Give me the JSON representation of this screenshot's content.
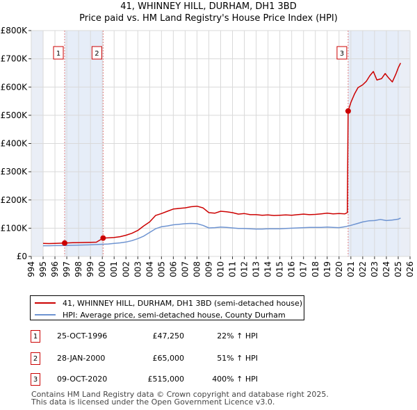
{
  "title_line1": "41, WHINNEY HILL, DURHAM, DH1 3BD",
  "title_line2": "Price paid vs. HM Land Registry's House Price Index (HPI)",
  "chart_data": {
    "type": "line",
    "title": "41, WHINNEY HILL, DURHAM, DH1 3BD — Price paid vs. HM Land Registry's House Price Index (HPI)",
    "xlim": [
      1994,
      2026
    ],
    "ylim": [
      0,
      800000
    ],
    "x_ticks": [
      1994,
      1995,
      1996,
      1997,
      1998,
      1999,
      2000,
      2001,
      2002,
      2003,
      2004,
      2005,
      2006,
      2007,
      2008,
      2009,
      2010,
      2011,
      2012,
      2013,
      2014,
      2015,
      2016,
      2017,
      2018,
      2019,
      2020,
      2021,
      2022,
      2023,
      2024,
      2025,
      2026
    ],
    "y_ticks": [
      {
        "value": 0,
        "label": "£0"
      },
      {
        "value": 100000,
        "label": "£100K"
      },
      {
        "value": 200000,
        "label": "£200K"
      },
      {
        "value": 300000,
        "label": "£300K"
      },
      {
        "value": 400000,
        "label": "£400K"
      },
      {
        "value": 500000,
        "label": "£500K"
      },
      {
        "value": 600000,
        "label": "£600K"
      },
      {
        "value": 700000,
        "label": "£700K"
      },
      {
        "value": 800000,
        "label": "£800K"
      }
    ],
    "grid": true,
    "data_range": [
      1995,
      2025.2
    ],
    "shaded_periods": [
      {
        "from": 1996.82,
        "to": 2000.07
      },
      {
        "from": 2020.77,
        "to": 2025.2
      }
    ],
    "series": [
      {
        "name": "41, WHINNEY HILL, DURHAM, DH1 3BD (semi-detached house)",
        "color": "#cc0000",
        "x": [
          1995.0,
          1995.5,
          1996.0,
          1996.82,
          1997.5,
          1998.0,
          1998.5,
          1999.0,
          1999.5,
          2000.07,
          2000.5,
          2001.0,
          2001.5,
          2002.0,
          2002.5,
          2003.0,
          2003.5,
          2004.0,
          2004.5,
          2005.0,
          2005.5,
          2006.0,
          2006.5,
          2007.0,
          2007.5,
          2008.0,
          2008.5,
          2009.0,
          2009.5,
          2010.0,
          2010.5,
          2011.0,
          2011.5,
          2012.0,
          2012.5,
          2013.0,
          2013.5,
          2014.0,
          2014.5,
          2015.0,
          2015.5,
          2016.0,
          2016.5,
          2017.0,
          2017.5,
          2018.0,
          2018.5,
          2019.0,
          2019.5,
          2020.0,
          2020.5,
          2020.7,
          2020.77,
          2021.0,
          2021.3,
          2021.6,
          2022.0,
          2022.3,
          2022.6,
          2022.9,
          2023.2,
          2023.6,
          2023.9,
          2024.2,
          2024.5,
          2024.8,
          2025.0,
          2025.2
        ],
        "y": [
          46000,
          45500,
          46000,
          47250,
          48500,
          49000,
          49500,
          50000,
          50500,
          65000,
          66000,
          67000,
          70000,
          75000,
          82000,
          92000,
          108000,
          122000,
          145000,
          152000,
          160000,
          168000,
          170000,
          172000,
          176000,
          178000,
          172000,
          155000,
          153000,
          160000,
          158000,
          155000,
          150000,
          152000,
          148000,
          148000,
          146000,
          147000,
          145000,
          146000,
          147000,
          146000,
          148000,
          150000,
          148000,
          149000,
          151000,
          153000,
          151000,
          152000,
          151000,
          155000,
          515000,
          545000,
          575000,
          598000,
          608000,
          620000,
          640000,
          655000,
          625000,
          630000,
          648000,
          632000,
          618000,
          646000,
          668000,
          685000
        ]
      },
      {
        "name": "HPI: Average price, semi-detached house, County Durham",
        "color": "#6d93d1",
        "x": [
          1995.0,
          1995.5,
          1996.0,
          1996.5,
          1997.0,
          1997.5,
          1998.0,
          1998.5,
          1999.0,
          1999.5,
          2000.0,
          2000.5,
          2001.0,
          2001.5,
          2002.0,
          2002.5,
          2003.0,
          2003.5,
          2004.0,
          2004.5,
          2005.0,
          2005.5,
          2006.0,
          2006.5,
          2007.0,
          2007.5,
          2008.0,
          2008.5,
          2009.0,
          2009.5,
          2010.0,
          2010.5,
          2011.0,
          2011.5,
          2012.0,
          2012.5,
          2013.0,
          2013.5,
          2014.0,
          2014.5,
          2015.0,
          2015.5,
          2016.0,
          2016.5,
          2017.0,
          2017.5,
          2018.0,
          2018.5,
          2019.0,
          2019.5,
          2020.0,
          2020.5,
          2021.0,
          2021.5,
          2022.0,
          2022.5,
          2023.0,
          2023.5,
          2024.0,
          2024.5,
          2025.0,
          2025.2
        ],
        "y": [
          38000,
          38000,
          38500,
          38500,
          39000,
          39500,
          40000,
          40500,
          41000,
          42000,
          43000,
          44000,
          46000,
          48000,
          51000,
          56000,
          63000,
          72000,
          85000,
          98000,
          105000,
          108000,
          112000,
          114000,
          116000,
          117000,
          116000,
          110000,
          101000,
          102000,
          104000,
          103000,
          101000,
          99000,
          99000,
          98000,
          97000,
          97000,
          98000,
          98000,
          98000,
          99000,
          100000,
          101000,
          102000,
          103000,
          103000,
          103000,
          104000,
          103000,
          102000,
          105000,
          110000,
          116000,
          122000,
          126000,
          127000,
          131000,
          127000,
          129000,
          132000,
          136000
        ]
      }
    ],
    "annotations": [
      {
        "label": "1",
        "x": 1996.82,
        "y": 47250
      },
      {
        "label": "2",
        "x": 2000.07,
        "y": 65000
      },
      {
        "label": "3",
        "x": 2020.77,
        "y": 515000
      }
    ]
  },
  "legend": [
    {
      "label": "41, WHINNEY HILL, DURHAM, DH1 3BD (semi-detached house)",
      "color": "#cc0000"
    },
    {
      "label": "HPI: Average price, semi-detached house, County Durham",
      "color": "#6d93d1"
    }
  ],
  "transactions": [
    {
      "num": "1",
      "date": "25-OCT-1996",
      "price": "£47,250",
      "hpi": "22% ↑ HPI"
    },
    {
      "num": "2",
      "date": "28-JAN-2000",
      "price": "£65,000",
      "hpi": "51% ↑ HPI"
    },
    {
      "num": "3",
      "date": "09-OCT-2020",
      "price": "£515,000",
      "hpi": "400% ↑ HPI"
    }
  ],
  "footer_line1": "Contains HM Land Registry data © Crown copyright and database right 2025.",
  "footer_line2": "This data is licensed under the Open Government Licence v3.0."
}
